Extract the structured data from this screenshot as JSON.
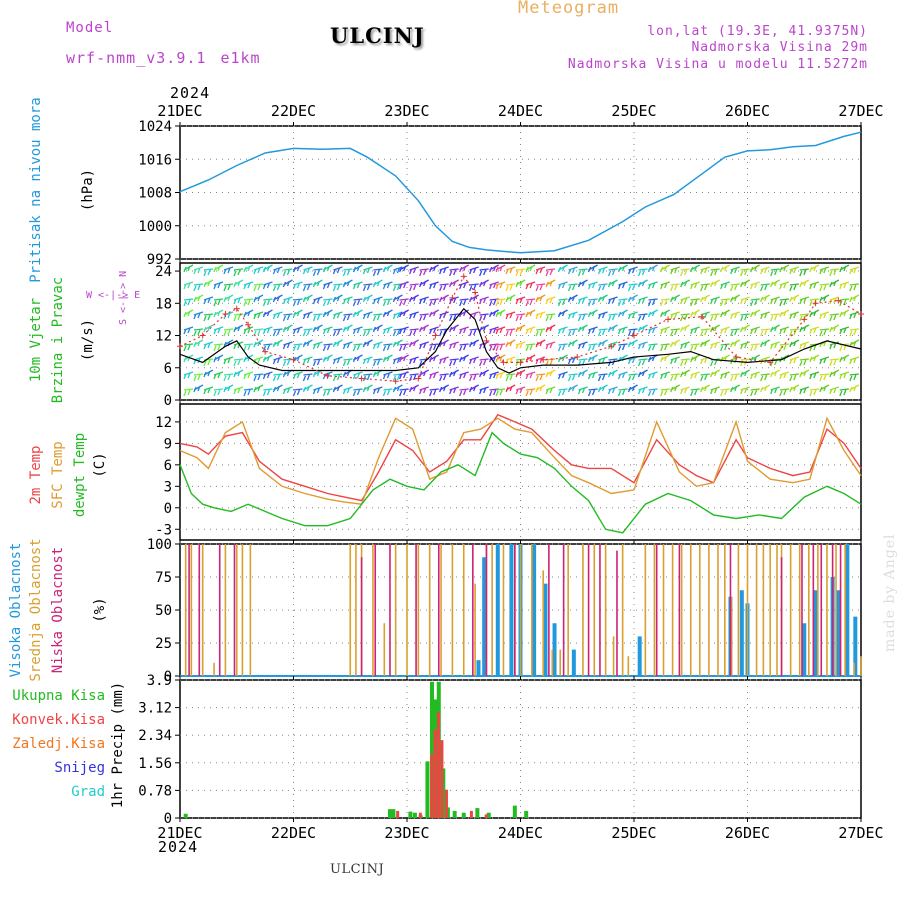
{
  "header": {
    "model_label": "Model",
    "model_name": "wrf-nmm_v3.9.1 e1km",
    "station": "ULCINJ",
    "meteogram": "Meteogram",
    "lonlat": "lon,lat (19.3E, 41.9375N)",
    "elevation": "Nadmorska Visina 29m",
    "model_elevation": "Nadmorska Visina u modelu 11.5272m",
    "footer_station": "ULCINJ",
    "watermark": "made by Angel"
  },
  "colors": {
    "pressure": "#2299dd",
    "wind_speed": "#000000",
    "wind_gust": "#dd3333",
    "t2m": "#ee4444",
    "sfc": "#e09a30",
    "dew": "#22bb22",
    "cloud_high": "#2299dd",
    "cloud_mid": "#d9a030",
    "cloud_low": "#cc2277",
    "precip_total": "#22bb22",
    "precip_conv": "#ee4444",
    "precip_frz": "#ee7722",
    "precip_snow": "#3333dd",
    "precip_graupel": "#22cccc",
    "header_purple": "#bb44cc",
    "meteogram_orange": "#e8b060"
  },
  "chart_data": {
    "type": "line",
    "x_axis": {
      "year": "2024",
      "tick_labels": [
        "21DEC",
        "22DEC",
        "23DEC",
        "24DEC",
        "25DEC",
        "26DEC",
        "27DEC"
      ],
      "range_days": [
        0,
        6
      ]
    },
    "panels": [
      {
        "id": "pressure",
        "ylabel_lines": [
          "Pritisak na nivou mora"
        ],
        "unit": "(hPa)",
        "ylim": [
          992,
          1024
        ],
        "yticks": [
          992,
          1000,
          1008,
          1016,
          1024
        ],
        "series": [
          {
            "name": "Pritisak na nivou mora",
            "x": [
              0,
              0.25,
              0.5,
              0.75,
              1.0,
              1.25,
              1.5,
              1.65,
              1.9,
              2.1,
              2.25,
              2.4,
              2.55,
              2.7,
              3.0,
              3.3,
              3.6,
              3.9,
              4.1,
              4.35,
              4.6,
              4.8,
              5.0,
              5.2,
              5.4,
              5.6,
              5.85,
              6.0
            ],
            "y": [
              1008.2,
              1011,
              1014.5,
              1017.5,
              1018.6,
              1018.4,
              1018.6,
              1016.5,
              1012,
              1006,
              1000,
              996.2,
              994.8,
              994.2,
              993.5,
              994,
              996.5,
              1001,
              1004.5,
              1007.5,
              1012.5,
              1016.5,
              1018,
              1018.3,
              1019,
              1019.3,
              1021.5,
              1022.5
            ]
          }
        ]
      },
      {
        "id": "wind",
        "ylabel_lines": [
          "10m Vjetar",
          "Brzina i Pravac"
        ],
        "unit": "(m/s)",
        "compass": {
          "n": "N",
          "w": "W",
          "e": "E",
          "s": "S"
        },
        "ylim": [
          0,
          25.5
        ],
        "yticks": [
          0,
          6,
          12,
          18,
          24
        ],
        "series": [
          {
            "name": "speed",
            "x": [
              0,
              0.2,
              0.4,
              0.5,
              0.6,
              0.7,
              0.9,
              1.2,
              1.6,
              1.9,
              2.1,
              2.25,
              2.35,
              2.5,
              2.6,
              2.7,
              2.8,
              2.9,
              3.0,
              3.2,
              3.5,
              3.8,
              4.0,
              4.3,
              4.5,
              4.7,
              5.0,
              5.3,
              5.5,
              5.7,
              6.0
            ],
            "y": [
              8.5,
              7,
              10,
              11,
              8,
              6.5,
              5.5,
              5.5,
              5.5,
              5.5,
              6,
              9,
              13,
              17,
              15,
              9,
              6,
              5,
              6,
              6.5,
              6.5,
              7,
              8,
              8.5,
              9,
              7.5,
              7,
              7.5,
              9.5,
              11,
              9.5
            ]
          },
          {
            "name": "gust",
            "x": [
              0,
              0.2,
              0.4,
              0.5,
              0.6,
              0.75,
              1.0,
              1.3,
              1.6,
              1.9,
              2.1,
              2.25,
              2.4,
              2.5,
              2.6,
              2.7,
              2.85,
              3.0,
              3.2,
              3.5,
              3.8,
              4.0,
              4.3,
              4.6,
              4.9,
              5.2,
              5.5,
              5.6,
              5.8,
              6.0
            ],
            "y": [
              10,
              12,
              16,
              17,
              14,
              9,
              7.5,
              4.5,
              4,
              3.5,
              4,
              12,
              19,
              23,
              20,
              11,
              7,
              7,
              7.5,
              8,
              10,
              12,
              15,
              15.5,
              8,
              7,
              15,
              18,
              18.5,
              16
            ]
          }
        ]
      },
      {
        "id": "temperature",
        "ylabel_lines": [
          "2m Temp",
          "SFC Temp",
          "dewpt Temp"
        ],
        "unit": "(C)",
        "ylim": [
          -4.5,
          14.5
        ],
        "yticks": [
          -3,
          0,
          3,
          6,
          9,
          12
        ],
        "series": [
          {
            "name": "2m Temp",
            "x": [
              0,
              0.15,
              0.25,
              0.4,
              0.55,
              0.7,
              0.9,
              1.1,
              1.3,
              1.45,
              1.6,
              1.75,
              1.9,
              2.05,
              2.2,
              2.35,
              2.5,
              2.65,
              2.8,
              2.95,
              3.1,
              3.3,
              3.45,
              3.6,
              3.8,
              4.0,
              4.2,
              4.4,
              4.55,
              4.7,
              4.9,
              5.0,
              5.2,
              5.4,
              5.55,
              5.7,
              5.85,
              6.0
            ],
            "y": [
              9,
              8.5,
              7.5,
              10,
              10.5,
              6.5,
              4,
              3,
              2,
              1.5,
              1,
              5,
              9.5,
              8,
              5,
              6.5,
              9.5,
              9.5,
              13,
              12,
              11,
              8,
              6,
              5.5,
              5.5,
              3.5,
              9.5,
              6,
              4.5,
              3.5,
              9.5,
              7,
              5.5,
              4.5,
              5,
              11,
              9,
              5.5
            ]
          },
          {
            "name": "SFC Temp",
            "x": [
              0,
              0.15,
              0.25,
              0.4,
              0.55,
              0.7,
              0.9,
              1.1,
              1.3,
              1.45,
              1.6,
              1.75,
              1.9,
              2.05,
              2.2,
              2.35,
              2.5,
              2.65,
              2.8,
              2.95,
              3.1,
              3.3,
              3.45,
              3.6,
              3.8,
              4.0,
              4.2,
              4.4,
              4.55,
              4.7,
              4.9,
              5.0,
              5.2,
              5.4,
              5.55,
              5.7,
              5.85,
              6.0
            ],
            "y": [
              8,
              7,
              5.5,
              10.5,
              12,
              5.5,
              3,
              2,
              1.2,
              0.8,
              0.5,
              7,
              12.5,
              11,
              4,
              5,
              10.5,
              11,
              12.5,
              11,
              10.5,
              7,
              4.5,
              3.5,
              2,
              2.5,
              12,
              5,
              3,
              3.5,
              12,
              6.5,
              4,
              3.5,
              4,
              12.5,
              8,
              4.5
            ]
          },
          {
            "name": "dewpt Temp",
            "x": [
              0,
              0.1,
              0.2,
              0.3,
              0.45,
              0.6,
              0.75,
              0.9,
              1.1,
              1.3,
              1.5,
              1.7,
              1.85,
              2.0,
              2.15,
              2.3,
              2.45,
              2.6,
              2.75,
              2.85,
              3.0,
              3.15,
              3.3,
              3.45,
              3.6,
              3.75,
              3.9,
              4.1,
              4.3,
              4.5,
              4.7,
              4.9,
              5.1,
              5.3,
              5.5,
              5.7,
              5.85,
              6.0
            ],
            "y": [
              6,
              2,
              0.5,
              0,
              -0.5,
              0.5,
              -0.5,
              -1.5,
              -2.5,
              -2.5,
              -1.5,
              2.5,
              4,
              3,
              2.5,
              5,
              6,
              4.5,
              10.5,
              9,
              7.5,
              7,
              5.5,
              3,
              1,
              -3,
              -3.5,
              0.5,
              2,
              1,
              -1,
              -1.5,
              -1,
              -1.5,
              1.5,
              3,
              2,
              0.5
            ]
          }
        ]
      },
      {
        "id": "clouds",
        "ylabel_lines": [
          "Visoka Oblacnost",
          "Srednja Oblacnost",
          "Niska Oblacnost"
        ],
        "unit": "(%)",
        "ylim": [
          0,
          100
        ],
        "yticks": [
          0,
          25,
          50,
          75,
          100
        ],
        "series": [
          {
            "name": "Visoka Oblacnost",
            "x": [
              2.63,
              2.68,
              2.8,
              2.92,
              3.0,
              3.12,
              3.22,
              3.3,
              3.47,
              4.05,
              4.85,
              4.95,
              5.0,
              5.5,
              5.6,
              5.75,
              5.8,
              5.88,
              5.95
            ],
            "y": [
              12,
              90,
              100,
              100,
              100,
              100,
              70,
              40,
              20,
              30,
              60,
              65,
              55,
              40,
              65,
              75,
              65,
              100,
              45
            ]
          },
          {
            "name": "Srednja Oblacnost",
            "x": [
              0.05,
              0.1,
              0.2,
              0.3,
              0.4,
              0.5,
              0.55,
              0.62,
              1.5,
              1.55,
              1.6,
              1.7,
              1.8,
              1.9,
              2.0,
              2.1,
              2.2,
              2.3,
              2.4,
              2.5,
              2.6,
              2.7,
              2.75,
              2.85,
              2.95,
              3.0,
              3.1,
              3.2,
              3.28,
              3.35,
              3.42,
              3.55,
              3.65,
              3.75,
              3.82,
              3.9,
              3.95,
              4.1,
              4.18,
              4.26,
              4.34,
              4.42,
              4.5,
              4.58,
              4.66,
              4.74,
              4.8,
              4.86,
              4.92,
              5.0,
              5.08,
              5.14,
              5.2,
              5.26,
              5.3,
              5.38,
              5.46,
              5.54,
              5.62,
              5.7,
              5.78,
              5.86,
              5.94,
              6.0
            ],
            "y": [
              100,
              100,
              100,
              10,
              100,
              100,
              100,
              100,
              100,
              100,
              100,
              100,
              40,
              100,
              100,
              100,
              100,
              100,
              100,
              100,
              70,
              100,
              100,
              100,
              100,
              100,
              100,
              80,
              20,
              20,
              100,
              100,
              100,
              100,
              30,
              100,
              15,
              100,
              100,
              100,
              100,
              100,
              100,
              100,
              100,
              100,
              100,
              60,
              100,
              100,
              100,
              100,
              100,
              100,
              100,
              100,
              100,
              100,
              100,
              100,
              100,
              100,
              10,
              15
            ]
          },
          {
            "name": "Niska Oblacnost",
            "x": [
              0.08,
              0.17,
              0.35,
              0.48,
              1.6,
              1.72,
              1.85,
              2.08,
              2.28,
              2.58,
              2.7,
              2.95,
              3.25,
              3.38,
              3.6,
              3.7,
              3.85,
              4.2,
              4.4,
              4.85,
              5.3,
              5.48,
              5.58,
              5.65,
              5.75,
              5.82
            ],
            "y": [
              100,
              100,
              100,
              100,
              90,
              100,
              100,
              100,
              100,
              100,
              100,
              100,
              100,
              100,
              100,
              100,
              95,
              100,
              100,
              100,
              90,
              100,
              100,
              100,
              100,
              100
            ]
          }
        ]
      },
      {
        "id": "precip",
        "ylabel_lines": [
          "1hr Precip"
        ],
        "unit": "(mm)",
        "legend": [
          "Ukupna Kisa",
          "Konvek.Kisa",
          "Zaledj.Kisa",
          "Snijeg",
          "Grad"
        ],
        "ylim": [
          0,
          3.9
        ],
        "yticks": [
          0,
          0.78,
          1.56,
          2.34,
          3.12,
          3.9
        ],
        "series": [
          {
            "name": "Ukupna Kisa",
            "x": [
              0.05,
              1.85,
              1.88,
              2.03,
              2.07,
              2.12,
              2.18,
              2.22,
              2.25,
              2.28,
              2.32,
              2.36,
              2.42,
              2.5,
              2.62,
              2.72,
              2.95,
              3.05
            ],
            "y": [
              0.12,
              0.25,
              0.25,
              0.18,
              0.15,
              0.08,
              1.6,
              3.85,
              3.35,
              3.85,
              1.4,
              0.3,
              0.2,
              0.15,
              0.28,
              0.15,
              0.35,
              0.2
            ]
          },
          {
            "name": "Konvek.Kisa",
            "x": [
              1.9,
              2.1,
              2.2,
              2.23,
              2.26,
              2.29,
              2.33,
              2.55,
              2.68
            ],
            "y": [
              0.2,
              0.15,
              1.8,
              2.5,
              3.0,
              2.2,
              0.8,
              0.2,
              0.1
            ]
          },
          {
            "name": "Zaledj.Kisa",
            "x": [],
            "y": []
          },
          {
            "name": "Snijeg",
            "x": [],
            "y": []
          },
          {
            "name": "Grad",
            "x": [],
            "y": []
          }
        ]
      }
    ],
    "wind_barbs": {
      "segments": [
        {
          "from": 0.0,
          "to": 0.7,
          "colors": [
            "#22cc55",
            "#44ddaa",
            "#22cccc",
            "#66ee44",
            "#2288dd"
          ]
        },
        {
          "from": 0.7,
          "to": 1.9,
          "colors": [
            "#22cccc",
            "#2288dd",
            "#22cc99",
            "#3366dd"
          ]
        },
        {
          "from": 1.9,
          "to": 2.75,
          "colors": [
            "#3344ee",
            "#7733dd",
            "#aa33cc",
            "#5533ee"
          ]
        },
        {
          "from": 2.75,
          "to": 3.3,
          "colors": [
            "#ee4499",
            "#ee9922",
            "#ffcc22",
            "#66dd33",
            "#ee3355"
          ]
        },
        {
          "from": 3.3,
          "to": 4.2,
          "colors": [
            "#22cccc",
            "#33aadd",
            "#22cc88",
            "#2266dd"
          ]
        },
        {
          "from": 4.2,
          "to": 5.25,
          "colors": [
            "#99dd22",
            "#66cc22",
            "#ccdd33",
            "#33cc55"
          ]
        },
        {
          "from": 5.25,
          "to": 6.0,
          "colors": [
            "#66cc22",
            "#99dd22",
            "#33bb33",
            "#ccdd22"
          ]
        }
      ]
    }
  }
}
